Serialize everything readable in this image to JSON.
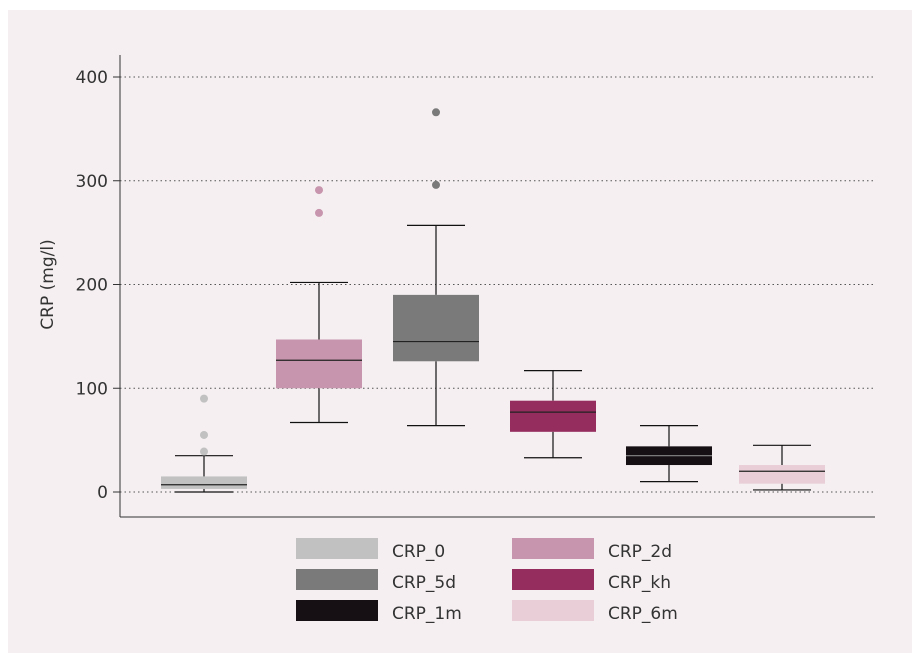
{
  "chart_data": {
    "type": "boxplot",
    "ylabel": "CRP (mg/l)",
    "ylim": [
      0,
      400
    ],
    "yticks": [
      0,
      100,
      200,
      300,
      400
    ],
    "grid": "horizontal-dotted",
    "legend_position": "bottom",
    "series": [
      {
        "name": "CRP_0",
        "color": "#c1c1c1",
        "min": 0,
        "q1": 3,
        "median": 7,
        "q3": 15,
        "max": 35,
        "outliers": [
          39,
          55,
          90
        ]
      },
      {
        "name": "CRP_2d",
        "color": "#c795ad",
        "min": 67,
        "q1": 100,
        "median": 127,
        "q3": 147,
        "max": 202,
        "outliers": [
          269,
          291
        ]
      },
      {
        "name": "CRP_5d",
        "color": "#7a7a7a",
        "min": 64,
        "q1": 126,
        "median": 145,
        "q3": 190,
        "max": 257,
        "outliers": [
          296,
          366
        ]
      },
      {
        "name": "CRP_kh",
        "color": "#952d5e",
        "min": 33,
        "q1": 58,
        "median": 77,
        "q3": 88,
        "max": 117,
        "outliers": []
      },
      {
        "name": "CRP_1m",
        "color": "#161015",
        "min": 10,
        "q1": 26,
        "median": 35,
        "q3": 44,
        "max": 64,
        "outliers": []
      },
      {
        "name": "CRP_6m",
        "color": "#e9ced8",
        "min": 2,
        "q1": 8,
        "median": 20,
        "q3": 26,
        "max": 45,
        "outliers": []
      }
    ],
    "legend_order": [
      "CRP_0",
      "CRP_2d",
      "CRP_5d",
      "CRP_kh",
      "CRP_1m",
      "CRP_6m"
    ]
  }
}
